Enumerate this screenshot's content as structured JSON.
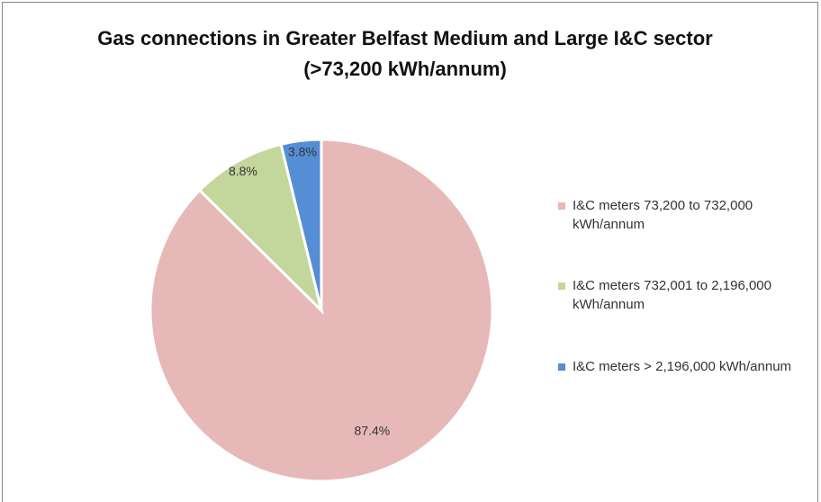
{
  "chart_data": {
    "type": "pie",
    "title": "Gas connections in Greater Belfast Medium and Large I&C sector (>73,200 kWh/annum)",
    "categories": [
      "I&C meters 73,200 to 732,000 kWh/annum",
      "I&C meters 732,001 to 2,196,000 kWh/annum",
      "I&C meters > 2,196,000 kWh/annum"
    ],
    "values": [
      87.4,
      8.8,
      3.8
    ],
    "value_labels": [
      "87.4%",
      "8.8%",
      "3.8%"
    ],
    "colors": [
      "#e6b9b8",
      "#c3d69b",
      "#558ed5"
    ],
    "legend": "right"
  }
}
